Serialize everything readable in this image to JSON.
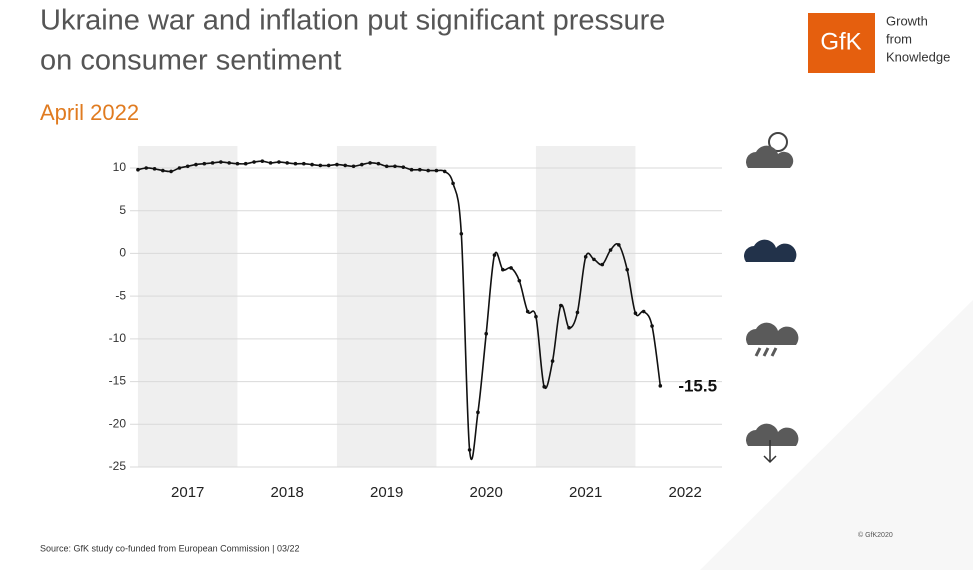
{
  "title": "Ukraine war and inflation put significant pressure on consumer sentiment",
  "subtitle": "April 2022",
  "logo": {
    "mark": "GfK",
    "tagline": [
      "Growth",
      "from",
      "Knowledge"
    ]
  },
  "source": "Source: GfK study co-funded from European Commission | 03/22",
  "copyright": "© GfK2020",
  "chart_data": {
    "type": "line",
    "x": [
      2017.0,
      2017.083,
      2017.167,
      2017.25,
      2017.333,
      2017.417,
      2017.5,
      2017.583,
      2017.667,
      2017.75,
      2017.833,
      2017.917,
      2018.0,
      2018.083,
      2018.167,
      2018.25,
      2018.333,
      2018.417,
      2018.5,
      2018.583,
      2018.667,
      2018.75,
      2018.833,
      2018.917,
      2019.0,
      2019.083,
      2019.167,
      2019.25,
      2019.333,
      2019.417,
      2019.5,
      2019.583,
      2019.667,
      2019.75,
      2019.833,
      2019.917,
      2020.0,
      2020.083,
      2020.167,
      2020.25,
      2020.333,
      2020.417,
      2020.5,
      2020.583,
      2020.667,
      2020.75,
      2020.833,
      2020.917,
      2021.0,
      2021.083,
      2021.167,
      2021.25,
      2021.333,
      2021.417,
      2021.5,
      2021.583,
      2021.667,
      2021.75,
      2021.833,
      2021.917,
      2022.0,
      2022.083,
      2022.167,
      2022.25
    ],
    "series": [
      {
        "name": "Consumer sentiment",
        "color": "#111111",
        "values": [
          9.8,
          10.0,
          9.9,
          9.7,
          9.6,
          10.0,
          10.2,
          10.4,
          10.5,
          10.6,
          10.7,
          10.6,
          10.5,
          10.5,
          10.7,
          10.8,
          10.6,
          10.7,
          10.6,
          10.5,
          10.5,
          10.4,
          10.3,
          10.3,
          10.4,
          10.3,
          10.2,
          10.4,
          10.6,
          10.5,
          10.2,
          10.2,
          10.1,
          9.8,
          9.8,
          9.7,
          9.7,
          9.6,
          8.2,
          2.3,
          -23.0,
          -18.6,
          -9.4,
          -0.2,
          -1.9,
          -1.7,
          -3.2,
          -6.8,
          -7.4,
          -15.6,
          -12.6,
          -6.1,
          -8.7,
          -6.9,
          -0.4,
          -0.7,
          -1.3,
          0.4,
          1.0,
          -1.9,
          -7.0,
          -6.8,
          -8.5,
          -15.5
        ]
      }
    ],
    "xlim": [
      2016.92,
      2022.87
    ],
    "xticks": [
      {
        "value": 2017.5,
        "label": "2017"
      },
      {
        "value": 2018.5,
        "label": "2018"
      },
      {
        "value": 2019.5,
        "label": "2019"
      },
      {
        "value": 2020.5,
        "label": "2020"
      },
      {
        "value": 2021.5,
        "label": "2021"
      },
      {
        "value": 2022.5,
        "label": "2022"
      }
    ],
    "ylim": [
      -25,
      10
    ],
    "yticks": [
      -25,
      -20,
      -15,
      -10,
      -5,
      0,
      5,
      10
    ],
    "grid": true,
    "shaded_ranges": [
      [
        2017,
        2018
      ],
      [
        2019,
        2020
      ],
      [
        2021,
        2022
      ]
    ]
  }
}
